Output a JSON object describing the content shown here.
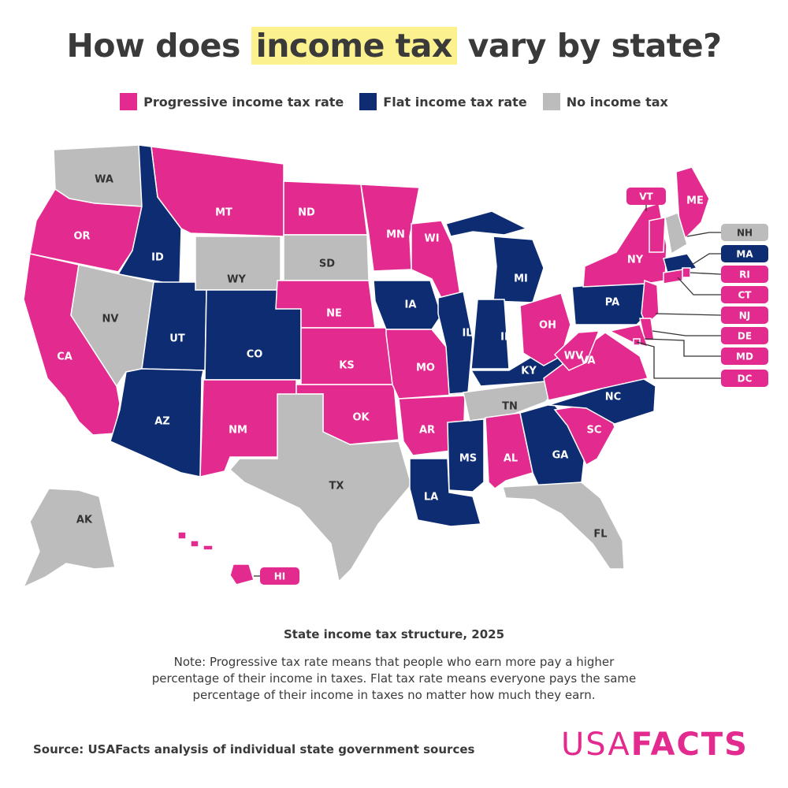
{
  "title": {
    "before": "How does",
    "highlight": "income tax",
    "after": "vary by state?"
  },
  "legend": [
    {
      "key": "progressive",
      "label": "Progressive income tax rate",
      "color": "#e32a8f"
    },
    {
      "key": "flat",
      "label": "Flat income tax rate",
      "color": "#0d2c72"
    },
    {
      "key": "none",
      "label": "No income tax",
      "color": "#bcbcbc"
    }
  ],
  "colors": {
    "progressive": "#e32a8f",
    "flat": "#0d2c72",
    "none": "#bcbcbc",
    "highlight": "#fbf28f",
    "brand": "#e32a8f"
  },
  "states": [
    {
      "code": "WA",
      "category": "none"
    },
    {
      "code": "OR",
      "category": "progressive"
    },
    {
      "code": "CA",
      "category": "progressive"
    },
    {
      "code": "ID",
      "category": "flat"
    },
    {
      "code": "NV",
      "category": "none"
    },
    {
      "code": "MT",
      "category": "progressive"
    },
    {
      "code": "WY",
      "category": "none"
    },
    {
      "code": "UT",
      "category": "flat"
    },
    {
      "code": "AZ",
      "category": "flat"
    },
    {
      "code": "CO",
      "category": "flat"
    },
    {
      "code": "NM",
      "category": "progressive"
    },
    {
      "code": "ND",
      "category": "progressive"
    },
    {
      "code": "SD",
      "category": "none"
    },
    {
      "code": "NE",
      "category": "progressive"
    },
    {
      "code": "KS",
      "category": "progressive"
    },
    {
      "code": "OK",
      "category": "progressive"
    },
    {
      "code": "TX",
      "category": "none"
    },
    {
      "code": "MN",
      "category": "progressive"
    },
    {
      "code": "IA",
      "category": "flat"
    },
    {
      "code": "MO",
      "category": "progressive"
    },
    {
      "code": "AR",
      "category": "progressive"
    },
    {
      "code": "LA",
      "category": "flat"
    },
    {
      "code": "WI",
      "category": "progressive"
    },
    {
      "code": "IL",
      "category": "flat"
    },
    {
      "code": "MS",
      "category": "flat"
    },
    {
      "code": "MI",
      "category": "flat"
    },
    {
      "code": "IN",
      "category": "flat"
    },
    {
      "code": "KY",
      "category": "flat"
    },
    {
      "code": "TN",
      "category": "none"
    },
    {
      "code": "AL",
      "category": "progressive"
    },
    {
      "code": "OH",
      "category": "progressive"
    },
    {
      "code": "GA",
      "category": "flat"
    },
    {
      "code": "FL",
      "category": "none"
    },
    {
      "code": "SC",
      "category": "progressive"
    },
    {
      "code": "NC",
      "category": "flat"
    },
    {
      "code": "VA",
      "category": "progressive"
    },
    {
      "code": "WV",
      "category": "progressive"
    },
    {
      "code": "PA",
      "category": "flat"
    },
    {
      "code": "NY",
      "category": "progressive"
    },
    {
      "code": "ME",
      "category": "progressive"
    },
    {
      "code": "AK",
      "category": "none"
    },
    {
      "code": "HI",
      "category": "progressive"
    },
    {
      "code": "VT",
      "category": "progressive"
    },
    {
      "code": "NH",
      "category": "none"
    },
    {
      "code": "MA",
      "category": "flat"
    },
    {
      "code": "RI",
      "category": "progressive"
    },
    {
      "code": "CT",
      "category": "progressive"
    },
    {
      "code": "NJ",
      "category": "progressive"
    },
    {
      "code": "DE",
      "category": "progressive"
    },
    {
      "code": "MD",
      "category": "progressive"
    },
    {
      "code": "DC",
      "category": "progressive"
    }
  ],
  "subtitle": "State income tax structure, 2025",
  "note": "Note: Progressive tax rate means that people who earn more pay a higher percentage of their income in taxes. Flat tax rate means everyone pays the same percentage of their income in taxes no matter how much they earn.",
  "source": "Source: USAFacts analysis of individual state government sources",
  "brand": {
    "part1": "USA",
    "part2": "FACTS"
  }
}
